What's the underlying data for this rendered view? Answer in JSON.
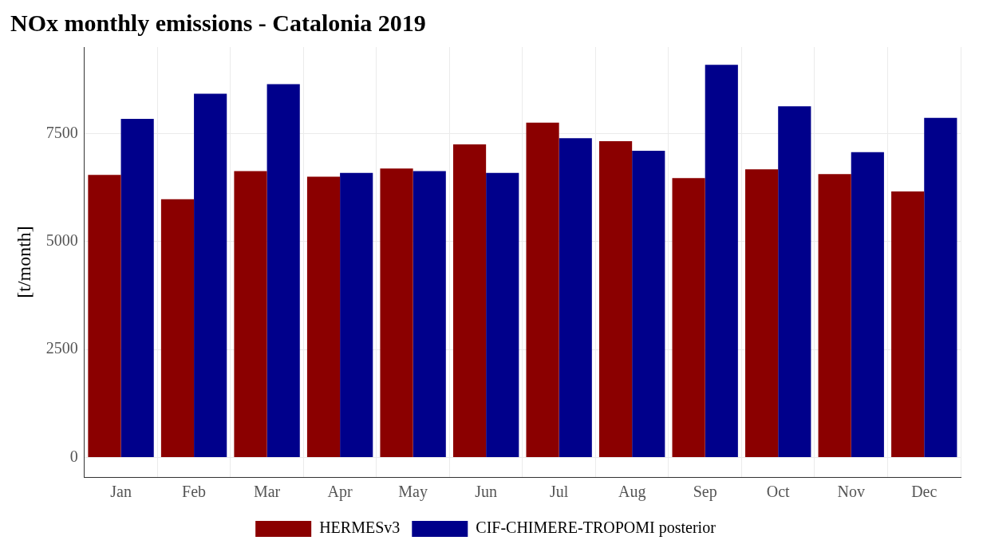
{
  "chart_data": {
    "type": "bar",
    "title": "NOx monthly emissions - Catalonia 2019",
    "ylabel": "[t/month]",
    "categories": [
      "Jan",
      "Feb",
      "Mar",
      "Apr",
      "May",
      "Jun",
      "Jul",
      "Aug",
      "Sep",
      "Oct",
      "Nov",
      "Dec"
    ],
    "series": [
      {
        "name": "HERMESv3",
        "color": "#8b0000",
        "values": [
          6540,
          5980,
          6630,
          6500,
          6690,
          7250,
          7750,
          7320,
          6470,
          6670,
          6560,
          6160
        ]
      },
      {
        "name": "CIF-CHIMERE-TROPOMI posterior",
        "color": "#00008b",
        "values": [
          7840,
          8420,
          8640,
          6590,
          6630,
          6590,
          7390,
          7100,
          9090,
          8130,
          7070,
          7860
        ]
      }
    ],
    "ylim": [
      -450,
      9500
    ],
    "yticks": [
      0,
      2500,
      5000,
      7500
    ],
    "grid": true,
    "legend": "bottom"
  }
}
